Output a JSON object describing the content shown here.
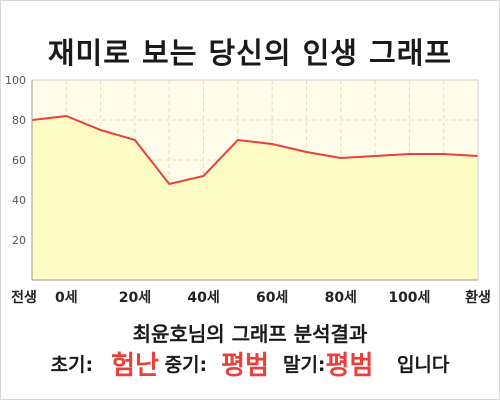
{
  "title": "재미로 보는 당신의 인생 그래프",
  "colors": {
    "line": "#e8413c",
    "fill": "#fffbc4",
    "plot_bg": "#fffdea",
    "grid": "#e3ddb7",
    "axis": "#9a9a9a",
    "highlight": "#e8413c"
  },
  "chart_data": {
    "type": "area",
    "title": "재미로 보는 당신의 인생 그래프",
    "xlabel": "",
    "ylabel": "",
    "x": [
      "전생",
      "0세",
      "",
      "20세",
      "",
      "40세",
      "",
      "60세",
      "",
      "80세",
      "",
      "100세",
      "",
      "환생"
    ],
    "xticks": [
      "전생",
      "0세",
      "20세",
      "40세",
      "60세",
      "80세",
      "100세",
      "환생"
    ],
    "values": [
      80,
      82,
      75,
      70,
      48,
      52,
      70,
      68,
      64,
      61,
      62,
      63,
      63,
      62
    ],
    "ylim": [
      0,
      100
    ],
    "yticks": [
      20,
      40,
      60,
      80,
      100
    ],
    "grid": true,
    "legend": "none"
  },
  "result": {
    "headline": "최윤호님의 그래프 분석결과",
    "early_label": "초기:",
    "early_value": "험난",
    "mid_label": "중기:",
    "mid_value": "평범",
    "late_label": "말기:",
    "late_value": "평범",
    "ending": "입니다"
  }
}
